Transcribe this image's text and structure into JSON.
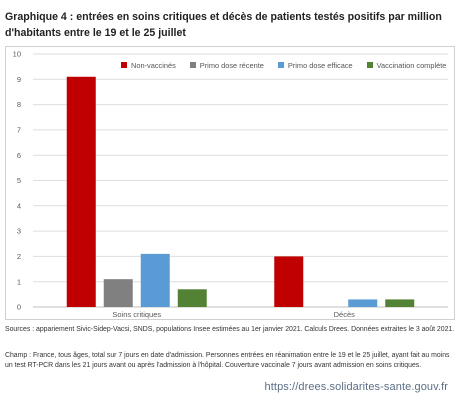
{
  "title": "Graphique 4 : entrées en soins critiques et décès de patients testés positifs par million d'habitants entre le 19 et le 25 juillet",
  "chart_data": {
    "type": "bar",
    "title": "",
    "xlabel": "",
    "ylabel": "",
    "ylim": [
      0,
      10
    ],
    "yticks": [
      "0",
      "1",
      "2",
      "3",
      "4",
      "5",
      "6",
      "7",
      "8",
      "9",
      "10"
    ],
    "grid": true,
    "legend_position": "top",
    "categories": [
      "Soins critiques",
      "Décès"
    ],
    "series": [
      {
        "name": "Non-vaccinés",
        "color": "#c00000",
        "values": [
          9.1,
          2.0
        ]
      },
      {
        "name": "Primo dose récente",
        "color": "#808080",
        "values": [
          1.1,
          0.0
        ]
      },
      {
        "name": "Primo dose efficace",
        "color": "#5b9bd5",
        "values": [
          2.1,
          0.3
        ]
      },
      {
        "name": "Vaccination complète",
        "color": "#548235",
        "values": [
          0.7,
          0.3
        ]
      }
    ]
  },
  "sources": "Sources : appariement Sivic-Sidep-Vacsi, SNDS, populations Insee estimées au 1er janvier 2021. Calculs Drees. Données extraites le 3 août 2021.",
  "champ": "Champ : France, tous âges, total sur 7 jours en date d'admission. Personnes entrées en réanimation entre le 19 et le 25 juillet, ayant fait au moins un test RT-PCR dans les 21 jours avant ou après l'admission à l'hôpital. Couverture vaccinale 7 jours avant admission en soins critiques.",
  "url": "https://drees.solidarites-sante.gouv.fr"
}
